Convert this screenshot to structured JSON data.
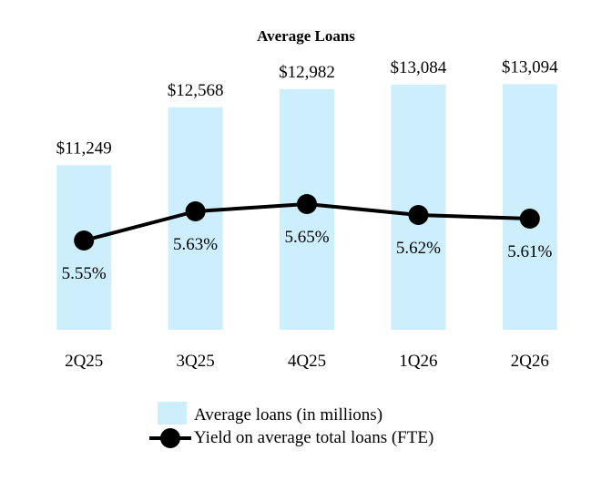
{
  "chart_data": {
    "type": "bar",
    "title": "Average Loans",
    "categories": [
      "2Q25",
      "3Q25",
      "4Q25",
      "1Q26",
      "2Q26"
    ],
    "series": [
      {
        "name": "Average loans (in millions)",
        "kind": "bar",
        "values": [
          11249,
          12568,
          12982,
          13084,
          13094
        ],
        "labels": [
          "$11,249",
          "$12,568",
          "$12,982",
          "$13,084",
          "$13,094"
        ],
        "color": "#cdeefc"
      },
      {
        "name": "Yield on average total loans (FTE)",
        "kind": "line",
        "values": [
          5.55,
          5.63,
          5.65,
          5.62,
          5.61
        ],
        "labels": [
          "5.55%",
          "5.63%",
          "5.65%",
          "5.62%",
          "5.61%"
        ],
        "color": "#000000"
      }
    ],
    "grid": false,
    "legend_position": "bottom"
  }
}
